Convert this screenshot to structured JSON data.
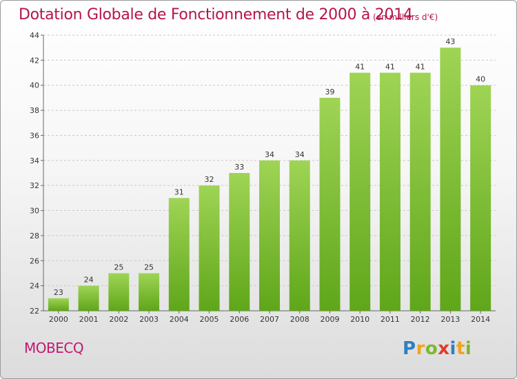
{
  "chart_data": {
    "type": "bar",
    "title": "Dotation Globale de Fonctionnement de 2000 à 2014",
    "subtitle": "(en milliers d'€)",
    "categories": [
      "2000",
      "2001",
      "2002",
      "2003",
      "2004",
      "2005",
      "2006",
      "2007",
      "2008",
      "2009",
      "2010",
      "2011",
      "2012",
      "2013",
      "2014"
    ],
    "values": [
      23,
      24,
      25,
      25,
      31,
      32,
      33,
      34,
      34,
      39,
      41,
      41,
      41,
      43,
      40
    ],
    "ylim": [
      22,
      44
    ],
    "yticks": [
      22,
      24,
      26,
      28,
      30,
      32,
      34,
      36,
      38,
      40,
      42,
      44
    ],
    "xlabel": "",
    "ylabel": "",
    "grid": "horizontal dashed",
    "bar_color_top": "#9fd455",
    "bar_color_bottom": "#5fa61a"
  },
  "commune": "MOBECQ",
  "logo": {
    "letters": [
      "P",
      "r",
      "o",
      "x",
      "i",
      "t",
      "i"
    ],
    "colors": [
      "#2f7fc1",
      "#f2a21c",
      "#7cb82f",
      "#e23a2e",
      "#2f7fc1",
      "#f2a21c",
      "#7cb82f"
    ]
  }
}
